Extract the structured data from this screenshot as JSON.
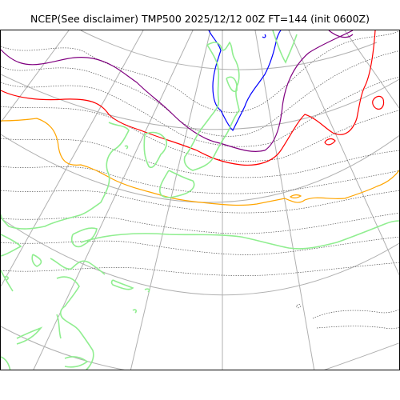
{
  "title": "NCEP(See disclaimer) TMP500 2025/12/12 00Z FT=144 (init 0600Z)",
  "colors": {
    "graticule": "#b0b0b0",
    "coastline": "#90ee90",
    "isotherm_minor": "#555555",
    "isotherm_orange": "#ffa500",
    "isotherm_red": "#ff0000",
    "isotherm_purple": "#800080",
    "isotherm_blue": "#0000ff",
    "frame": "#000000"
  }
}
